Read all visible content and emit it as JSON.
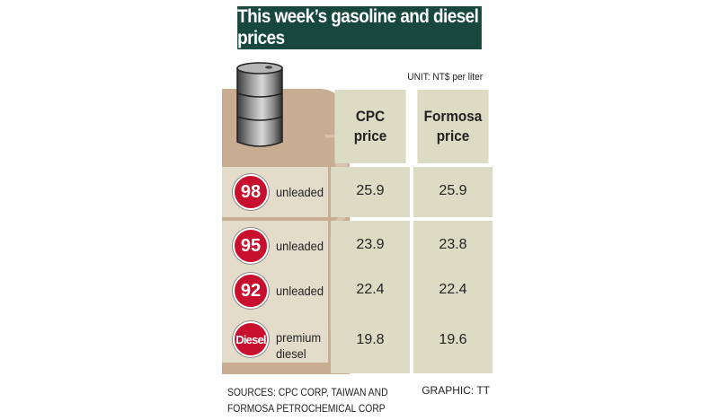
{
  "title": "This week’s gasoline and diesel prices",
  "unit": "UNIT: NT$ per liter",
  "chart_data": {
    "type": "table",
    "columns": [
      {
        "label_line1": "CPC",
        "label_line2": "price"
      },
      {
        "label_line1": "Formosa",
        "label_line2": "price"
      }
    ],
    "rows": [
      {
        "badge": "98",
        "label_line1": "unleaded",
        "label_line2": "",
        "values": [
          "25.9",
          "25.9"
        ]
      },
      {
        "badge": "95",
        "label_line1": "unleaded",
        "label_line2": "",
        "values": [
          "23.9",
          "23.8"
        ]
      },
      {
        "badge": "92",
        "label_line1": "unleaded",
        "label_line2": "",
        "values": [
          "22.4",
          "22.4"
        ]
      },
      {
        "badge": "Diesel",
        "label_line1": "premium",
        "label_line2": "diesel",
        "values": [
          "19.8",
          "19.6"
        ]
      }
    ]
  },
  "sources_line1": "SOURCES: CPC CORP, TAIWAN AND",
  "sources_line2": "FORMOSA PETROCHEMICAL CORP",
  "credit": "GRAPHIC: TT",
  "colors": {
    "title_bg": "#17473d",
    "cell_bg": "#dcdbc3",
    "tan": "#c9ad93",
    "badge_red": "#c8102e"
  }
}
